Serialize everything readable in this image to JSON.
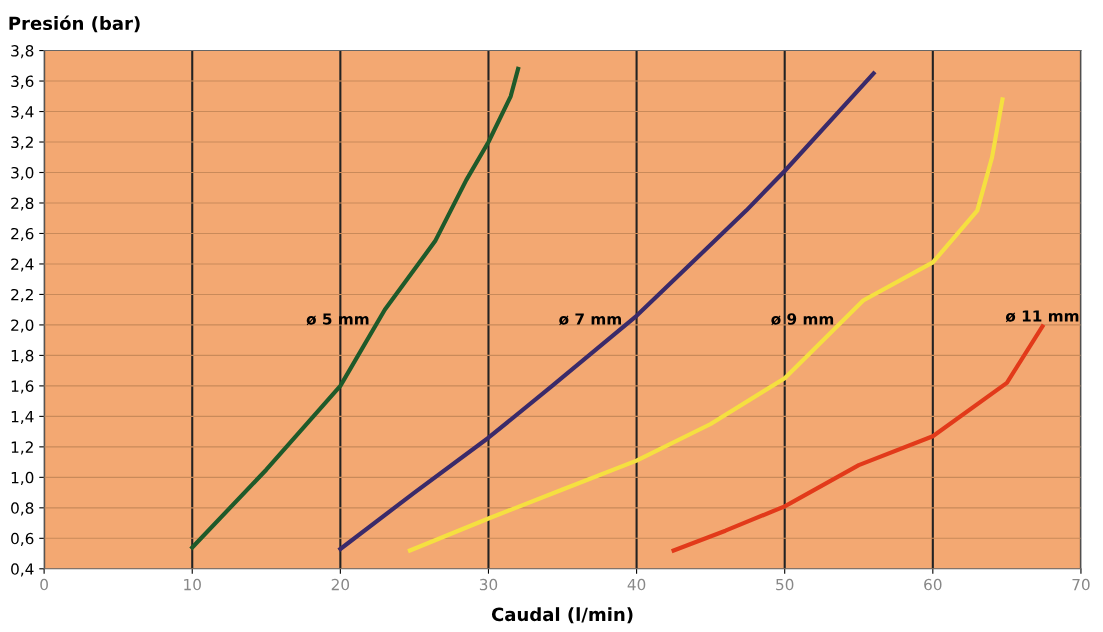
{
  "chart_data": {
    "type": "line",
    "ylabel": "Presión (bar)",
    "xlabel": "Caudal (l/min)",
    "xlim": [
      0,
      70
    ],
    "xticks": [
      0,
      10,
      20,
      30,
      40,
      50,
      60,
      70
    ],
    "ylim": [
      0.4,
      3.8
    ],
    "yticks": [
      {
        "value": 0.4,
        "label": "0,4"
      },
      {
        "value": 0.6,
        "label": "0,6"
      },
      {
        "value": 0.8,
        "label": "0,8"
      },
      {
        "value": 1.0,
        "label": "1,0"
      },
      {
        "value": 1.2,
        "label": "1,2"
      },
      {
        "value": 1.4,
        "label": "1,4"
      },
      {
        "value": 1.6,
        "label": "1,6"
      },
      {
        "value": 1.8,
        "label": "1,8"
      },
      {
        "value": 2.0,
        "label": "2,0"
      },
      {
        "value": 2.2,
        "label": "2,2"
      },
      {
        "value": 2.4,
        "label": "2,4"
      },
      {
        "value": 2.6,
        "label": "2,6"
      },
      {
        "value": 2.8,
        "label": "2,8"
      },
      {
        "value": 3.0,
        "label": "3,0"
      },
      {
        "value": 3.2,
        "label": "3,2"
      },
      {
        "value": 3.4,
        "label": "3,4"
      },
      {
        "value": 3.6,
        "label": "3,6"
      },
      {
        "value": 3.8,
        "label": "3,8"
      }
    ],
    "grid": true,
    "marker": "none",
    "line_style": "solid",
    "series": [
      {
        "name": "ø 5 mm",
        "color": "#1e5a2a",
        "x": [
          10,
          15,
          20,
          23,
          26.4,
          28.5,
          30,
          31.5,
          32
        ],
        "values": [
          0.54,
          1.05,
          1.6,
          2.1,
          2.55,
          2.95,
          3.2,
          3.5,
          3.68
        ]
      },
      {
        "name": "ø 7 mm",
        "color": "#3a2a6a",
        "x": [
          20,
          25,
          30,
          34.3,
          40,
          47.4,
          50,
          56
        ],
        "values": [
          0.53,
          0.9,
          1.26,
          1.6,
          2.06,
          2.75,
          3.01,
          3.65
        ]
      },
      {
        "name": "ø 9 mm",
        "color": "#f5e040",
        "x": [
          24.7,
          30,
          35,
          40,
          45,
          50,
          55.3,
          60,
          63,
          64,
          64.7
        ],
        "values": [
          0.52,
          0.73,
          0.92,
          1.11,
          1.35,
          1.65,
          2.16,
          2.41,
          2.75,
          3.1,
          3.48
        ]
      },
      {
        "name": "ø 11 mm",
        "color": "#e23a1a",
        "x": [
          42.5,
          46,
          50,
          55,
          60,
          65,
          67.4
        ],
        "values": [
          0.52,
          0.65,
          0.81,
          1.08,
          1.27,
          1.62,
          1.99
        ]
      }
    ]
  }
}
